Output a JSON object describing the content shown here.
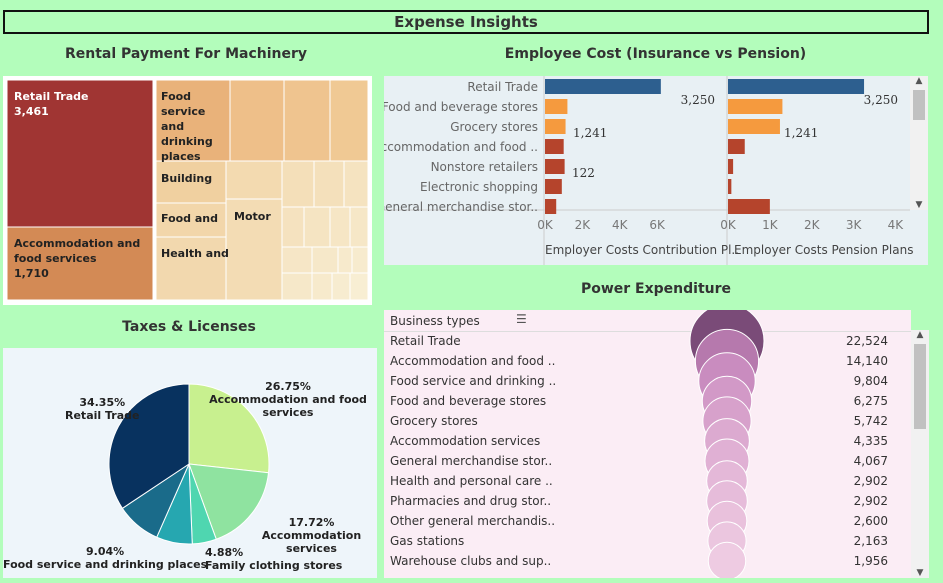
{
  "dashboard_title": "Expense Insights",
  "rental": {
    "title": "Rental Payment For Machinery",
    "tiles": [
      {
        "name": "Retail Trade",
        "value": "3,461",
        "color": "#a03533"
      },
      {
        "name": "Accommodation and food services",
        "value": "1,710",
        "color": "#d38a55"
      },
      {
        "name": "Food service and drinking places",
        "value": "",
        "color": "#e9b27a"
      },
      {
        "name": "Building",
        "value": "",
        "color": "#f0d0a0"
      },
      {
        "name": "Food and",
        "value": "",
        "color": "#f2d6aa"
      },
      {
        "name": "Motor",
        "value": "",
        "color": "#f3dab0"
      },
      {
        "name": "Health and",
        "value": "",
        "color": "#f2d8ae"
      }
    ],
    "chart_data": {
      "type": "treemap",
      "categories": [
        "Retail Trade",
        "Accommodation and food services"
      ],
      "values": [
        3461,
        1710
      ]
    }
  },
  "employee": {
    "title": "Employee Cost (Insurance vs Pension)",
    "categories": [
      "Retail Trade",
      "Food and beverage stores",
      "Grocery stores",
      "Accommodation and food ..",
      "Nonstore retailers",
      "Electronic shopping",
      "General merchandise stor.."
    ],
    "left_axis_label": "Employer Costs Contribution Pl..",
    "right_axis_label": "Employer Costs Pension Plans",
    "left_ticks": [
      "0K",
      "2K",
      "4K",
      "6K"
    ],
    "right_ticks": [
      "0K",
      "1K",
      "2K",
      "3K",
      "4K"
    ],
    "value_labels": [
      "3,250",
      "1,241",
      "122"
    ],
    "colors": {
      "retail": "#2d5f8f",
      "orange": "#f59a3e",
      "red": "#b5442c"
    },
    "chart_data": {
      "type": "bar",
      "categories": [
        "Retail Trade",
        "Food and beverage stores",
        "Grocery stores",
        "Accommodation and food ..",
        "Nonstore retailers",
        "Electronic shopping",
        "General merchandise stor.."
      ],
      "series": [
        {
          "name": "Employer Costs Contribution Pl..",
          "values": [
            6200,
            1200,
            1100,
            1000,
            1050,
            900,
            600
          ]
        },
        {
          "name": "Employer Costs Pension Plans",
          "values": [
            3250,
            1300,
            1241,
            400,
            122,
            80,
            1000
          ]
        }
      ],
      "xlim_left": [
        0,
        7600
      ],
      "xlim_right": [
        0,
        4300
      ]
    }
  },
  "taxes": {
    "title": "Taxes & Licenses",
    "labels": [
      {
        "pct": "34.35%",
        "name": "Retail Trade"
      },
      {
        "pct": "26.75%",
        "name": "Accommodation and food services"
      },
      {
        "pct": "17.72%",
        "name": "Accommodation services"
      },
      {
        "pct": "4.88%",
        "name": "Family clothing stores"
      },
      {
        "pct": "9.04%",
        "name": "Food service and drinking places"
      }
    ],
    "chart_data": {
      "type": "pie",
      "categories": [
        "Accommodation and food services",
        "Accommodation services",
        "Family clothing stores",
        "Unlabeled slice",
        "Food service and drinking places",
        "Retail Trade"
      ],
      "values": [
        26.75,
        17.72,
        4.88,
        7.26,
        9.04,
        34.35
      ],
      "colors": [
        "#c8f08f",
        "#8fe3a0",
        "#4fd6b0",
        "#26a7b0",
        "#1a6b8a",
        "#08325f"
      ]
    }
  },
  "power": {
    "title": "Power Expenditure",
    "header": "Business types",
    "rows": [
      {
        "name": "Retail Trade",
        "value": "22,524"
      },
      {
        "name": "Accommodation and food ..",
        "value": "14,140"
      },
      {
        "name": "Food service and drinking ..",
        "value": "9,804"
      },
      {
        "name": "Food and beverage stores",
        "value": "6,275"
      },
      {
        "name": "Grocery stores",
        "value": "5,742"
      },
      {
        "name": "Accommodation services",
        "value": "4,335"
      },
      {
        "name": "General merchandise stor..",
        "value": "4,067"
      },
      {
        "name": "Health and personal care ..",
        "value": "2,902"
      },
      {
        "name": "Pharmacies and drug stor..",
        "value": "2,902"
      },
      {
        "name": "Other general merchandis..",
        "value": "2,600"
      },
      {
        "name": "Gas stations",
        "value": "2,163"
      },
      {
        "name": "Warehouse clubs and sup..",
        "value": "1,956"
      }
    ],
    "chart_data": {
      "type": "scatter",
      "categories": [
        "Retail Trade",
        "Accommodation and food ..",
        "Food service and drinking ..",
        "Food and beverage stores",
        "Grocery stores",
        "Accommodation services",
        "General merchandise stor..",
        "Health and personal care ..",
        "Pharmacies and drug stor..",
        "Other general merchandis..",
        "Gas stations",
        "Warehouse clubs and sup.."
      ],
      "values": [
        22524,
        14140,
        9804,
        6275,
        5742,
        4335,
        4067,
        2902,
        2902,
        2600,
        2163,
        1956
      ]
    }
  }
}
